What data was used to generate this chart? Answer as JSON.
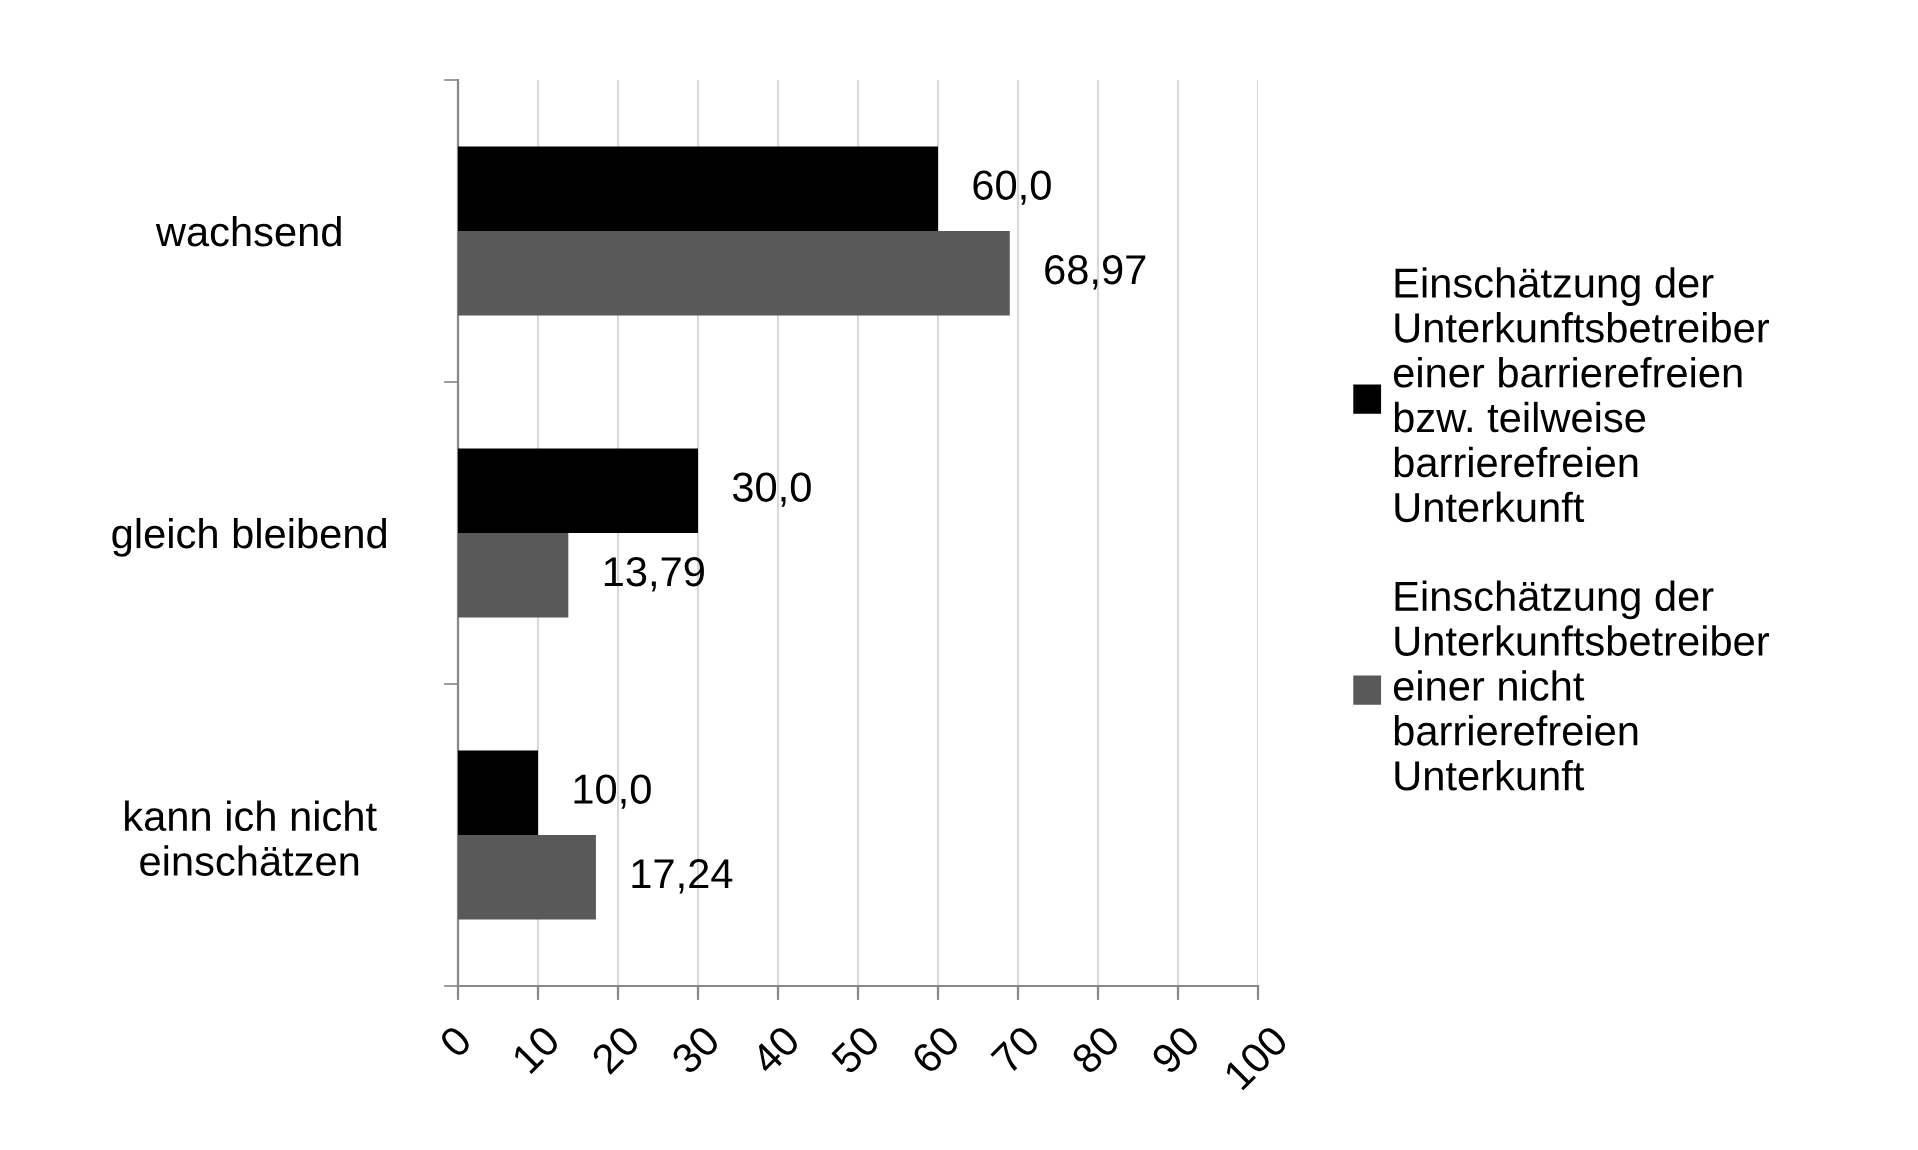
{
  "chart_data": {
    "type": "bar",
    "orientation": "horizontal",
    "categories": [
      "wachsend",
      "gleich bleibend",
      "kann ich nicht\neinschätzen"
    ],
    "series": [
      {
        "name": "Einschätzung der\nUnterkunftsbetreiber\neiner barrierefreien\nbzw. teilweise\nbarrierefreien\nUnterkunft",
        "color": "#000000",
        "values": [
          60.0,
          30.0,
          10.0
        ],
        "value_labels": [
          "60,0",
          "30,0",
          "10,0"
        ]
      },
      {
        "name": "Einschätzung der\nUnterkunftsbetreiber\neiner nicht\nbarrierefreien\nUnterkunft",
        "color": "#595959",
        "values": [
          68.97,
          13.79,
          17.24
        ],
        "value_labels": [
          "68,97",
          "13,79",
          "17,24"
        ]
      }
    ],
    "xlim": [
      0,
      100
    ],
    "xticks": [
      0,
      10,
      20,
      30,
      40,
      50,
      60,
      70,
      80,
      90,
      100
    ],
    "grid": "x",
    "legend": "right"
  }
}
